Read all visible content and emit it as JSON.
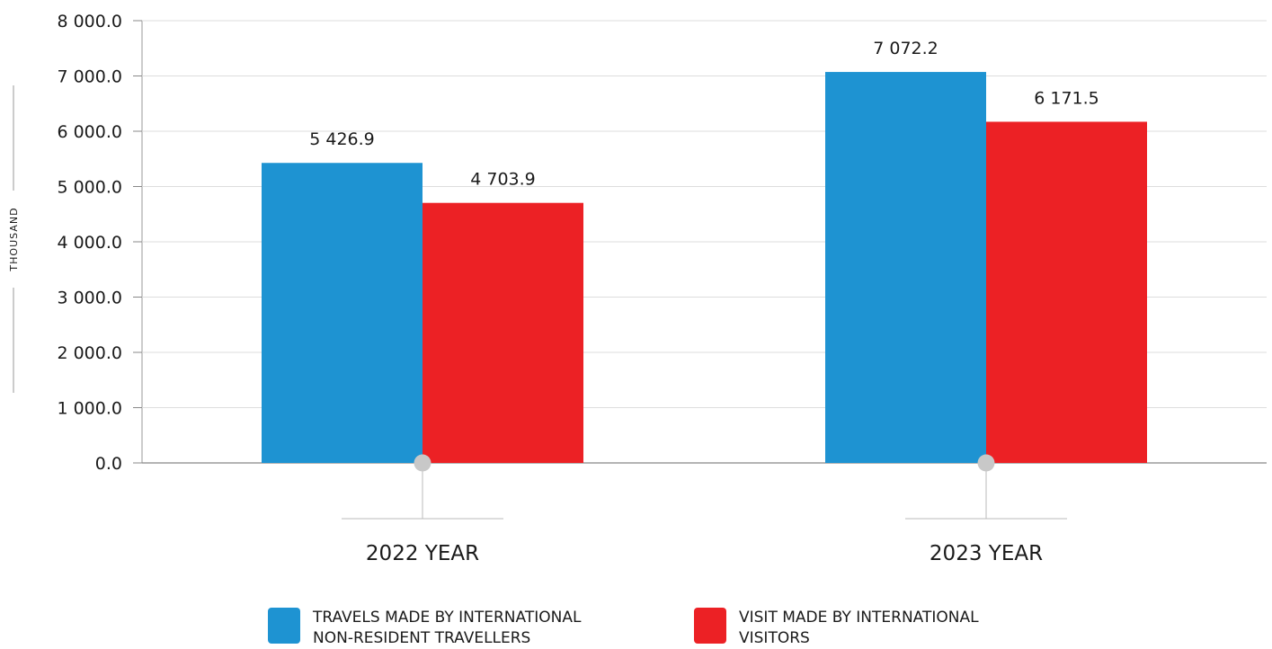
{
  "chart_data": {
    "type": "bar",
    "title": "",
    "ylabel": "THOUSAND",
    "xlabel": "",
    "ylim": [
      0,
      8000
    ],
    "yticks": [
      0,
      1000,
      2000,
      3000,
      4000,
      5000,
      6000,
      7000,
      8000
    ],
    "ytick_labels": [
      "0.0",
      "1 000.0",
      "2 000.0",
      "3 000.0",
      "4 000.0",
      "5 000.0",
      "6 000.0",
      "7 000.0",
      "8 000.0"
    ],
    "categories": [
      "2022 YEAR",
      "2023 YEAR"
    ],
    "grid": true,
    "legend_position": "bottom",
    "series": [
      {
        "name": "TRAVELS MADE BY INTERNATIONAL NON-RESIDENT TRAVELLERS",
        "color": "#1e93d2",
        "values": [
          5426.9,
          7072.2
        ],
        "labels": [
          "5 426.9",
          "7 072.2"
        ]
      },
      {
        "name": "VISIT MADE BY INTERNATIONAL VISITORS",
        "color": "#ec2125",
        "values": [
          4703.9,
          6171.5
        ],
        "labels": [
          "4 703.9",
          "6 171.5"
        ]
      }
    ]
  },
  "legend": {
    "items": [
      {
        "label": "TRAVELS MADE BY INTERNATIONAL NON-RESIDENT TRAVELLERS",
        "color": "#1e93d2"
      },
      {
        "label": "VISIT MADE BY INTERNATIONAL VISITORS",
        "color": "#ec2125"
      }
    ]
  }
}
